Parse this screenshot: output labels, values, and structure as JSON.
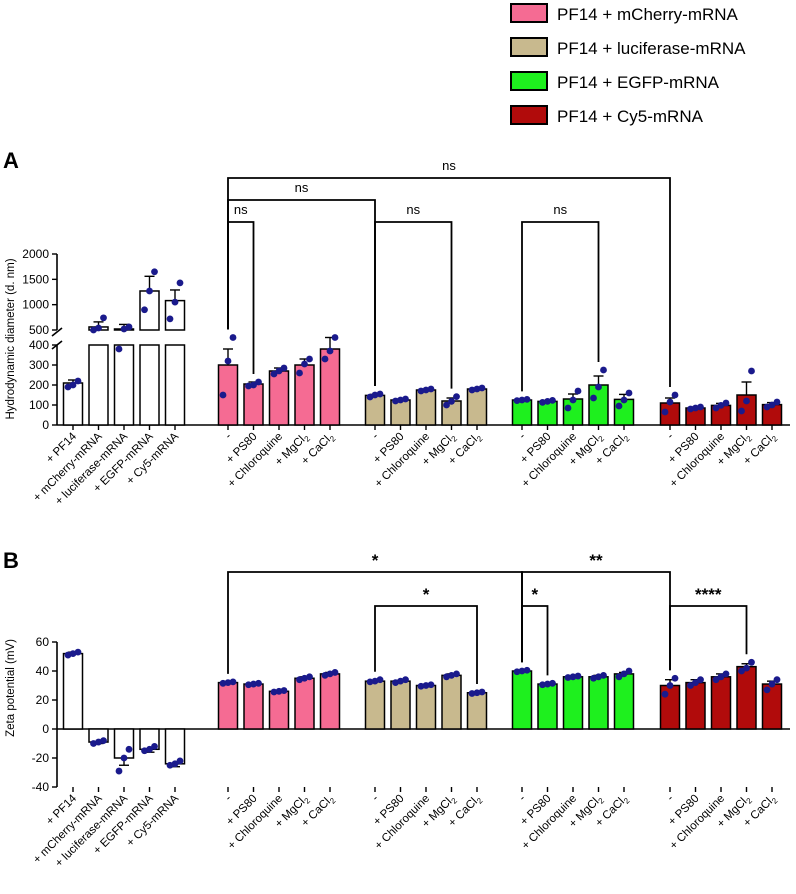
{
  "legend": [
    {
      "label": "PF14 + mCherry-mRNA",
      "color": "#f56b93"
    },
    {
      "label": "PF14 + luciferase-mRNA",
      "color": "#c8b98e"
    },
    {
      "label": "PF14 + EGFP-mRNA",
      "color": "#1ef01e"
    },
    {
      "label": "PF14 + Cy5-mRNA",
      "color": "#b10b0b"
    }
  ],
  "colors": {
    "dot": "#1a1a8c",
    "none": "#ffffff",
    "axis": "#000000"
  },
  "chart_data": [
    {
      "type": "bar",
      "panel": "A",
      "ylabel": "Hydrodynamic diameter (d. nm)",
      "y_lower_ticks": [
        "0",
        "100",
        "200",
        "300",
        "400"
      ],
      "y_upper_ticks": [
        "500",
        "1000",
        "1500",
        "2000"
      ],
      "ylim_lower": [
        0,
        400
      ],
      "ylim_upper": [
        500,
        2000
      ],
      "groups": [
        {
          "color_index": -1,
          "categories": [
            "+ PF14",
            "+ mCherry-mRNA",
            "+ luciferase-mRNA",
            "+ EGFP-mRNA",
            "+ Cy5-mRNA"
          ],
          "values": [
            210,
            560,
            520,
            1270,
            1080
          ],
          "errors": [
            15,
            100,
            90,
            290,
            210
          ],
          "points": [
            [
              190,
              200,
              220
            ],
            [
              500,
              540,
              740
            ],
            [
              380,
              520,
              560
            ],
            [
              900,
              1270,
              1650
            ],
            [
              720,
              1050,
              1430
            ]
          ]
        },
        {
          "color_index": 0,
          "categories": [
            "-",
            "+ PS80",
            "+ Chloroquine",
            "+ MgCl2",
            "+ CaCl2"
          ],
          "values": [
            300,
            205,
            270,
            300,
            380
          ],
          "errors": [
            80,
            10,
            15,
            30,
            40
          ],
          "points": [
            [
              150,
              320,
              470
            ],
            [
              195,
              200,
              215
            ],
            [
              255,
              270,
              285
            ],
            [
              260,
              305,
              330
            ],
            [
              330,
              370,
              450
            ]
          ]
        },
        {
          "color_index": 1,
          "categories": [
            "-",
            "+ PS80",
            "+ Chloroquine",
            "+ MgCl2",
            "+ CaCl2"
          ],
          "values": [
            148,
            125,
            175,
            120,
            180
          ],
          "errors": [
            5,
            5,
            5,
            15,
            5
          ],
          "points": [
            [
              140,
              150,
              155
            ],
            [
              120,
              125,
              130
            ],
            [
              170,
              175,
              180
            ],
            [
              100,
              118,
              142
            ],
            [
              175,
              180,
              185
            ]
          ]
        },
        {
          "color_index": 2,
          "categories": [
            "-",
            "+ PS80",
            "+ Chloroquine",
            "+ MgCl2",
            "+ CaCl2"
          ],
          "values": [
            125,
            118,
            130,
            200,
            128
          ],
          "errors": [
            3,
            5,
            25,
            45,
            25
          ],
          "points": [
            [
              122,
              125,
              128
            ],
            [
              113,
              118,
              123
            ],
            [
              85,
              125,
              170
            ],
            [
              135,
              190,
              275
            ],
            [
              95,
              125,
              160
            ]
          ]
        },
        {
          "color_index": 3,
          "categories": [
            "-",
            "+ PS80",
            "+ Chloroquine",
            "+ MgCl2",
            "+ CaCl2"
          ],
          "values": [
            110,
            85,
            98,
            150,
            102
          ],
          "errors": [
            25,
            5,
            10,
            65,
            10
          ],
          "points": [
            [
              65,
              115,
              150
            ],
            [
              80,
              85,
              90
            ],
            [
              85,
              98,
              110
            ],
            [
              70,
              120,
              270
            ],
            [
              90,
              100,
              115
            ]
          ]
        }
      ],
      "brackets": [
        {
          "from": [
            1,
            0
          ],
          "to": [
            1,
            1
          ],
          "level": 1,
          "label": "ns"
        },
        {
          "from": [
            1,
            0
          ],
          "to": [
            2,
            0
          ],
          "level": 2,
          "label": "ns"
        },
        {
          "from": [
            2,
            0
          ],
          "to": [
            2,
            3
          ],
          "level": 1,
          "label": "ns"
        },
        {
          "from": [
            3,
            0
          ],
          "to": [
            3,
            3
          ],
          "level": 1,
          "label": "ns"
        },
        {
          "from": [
            1,
            0
          ],
          "to": [
            4,
            0
          ],
          "level": 3,
          "label": "ns"
        }
      ]
    },
    {
      "type": "bar",
      "panel": "B",
      "ylabel": "Zeta potential (mV)",
      "y_ticks": [
        "-40",
        "-20",
        "0",
        "20",
        "40",
        "60"
      ],
      "ylim": [
        -40,
        60
      ],
      "groups": [
        {
          "color_index": -1,
          "categories": [
            "+ PF14",
            "+ mCherry-mRNA",
            "+ luciferase-mRNA",
            "+ EGFP-mRNA",
            "+ Cy5-mRNA"
          ],
          "values": [
            52,
            -9,
            -20,
            -14,
            -24
          ],
          "errors": [
            1,
            1,
            5,
            2,
            2
          ],
          "points": [
            [
              51,
              52,
              53
            ],
            [
              -10,
              -9,
              -8
            ],
            [
              -29,
              -20,
              -14
            ],
            [
              -15,
              -14,
              -12
            ],
            [
              -25,
              -24,
              -22
            ]
          ]
        },
        {
          "color_index": 0,
          "categories": [
            "-",
            "+ PS80",
            "+ Chloroquine",
            "+ MgCl2",
            "+ CaCl2"
          ],
          "values": [
            32,
            31,
            26,
            35,
            38
          ],
          "errors": [
            0.5,
            0.5,
            0.5,
            1,
            1
          ],
          "points": [
            [
              31.5,
              32,
              32.5
            ],
            [
              30.5,
              31,
              31.5
            ],
            [
              25.5,
              26,
              26.5
            ],
            [
              34,
              35,
              36
            ],
            [
              37,
              38,
              39
            ]
          ]
        },
        {
          "color_index": 1,
          "categories": [
            "-",
            "+ PS80",
            "+ Chloroquine",
            "+ MgCl2",
            "+ CaCl2"
          ],
          "values": [
            33,
            33,
            30,
            37,
            25
          ],
          "errors": [
            0.5,
            0.5,
            0.5,
            1,
            0.5
          ],
          "points": [
            [
              32.5,
              33,
              34
            ],
            [
              32,
              33,
              34
            ],
            [
              29.5,
              30,
              30.5
            ],
            [
              36,
              37,
              38
            ],
            [
              24.5,
              25,
              25.5
            ]
          ]
        },
        {
          "color_index": 2,
          "categories": [
            "-",
            "+ PS80",
            "+ Chloroquine",
            "+ MgCl2",
            "+ CaCl2"
          ],
          "values": [
            40,
            31,
            36,
            36,
            38
          ],
          "errors": [
            0.5,
            0.5,
            0.5,
            1,
            1
          ],
          "points": [
            [
              39.5,
              40,
              40.5
            ],
            [
              30.5,
              31,
              31.5
            ],
            [
              35.5,
              36,
              36.5
            ],
            [
              35,
              36,
              37
            ],
            [
              36,
              38,
              40
            ]
          ]
        },
        {
          "color_index": 3,
          "categories": [
            "-",
            "+ PS80",
            "+ Chloroquine",
            "+ MgCl2",
            "+ CaCl2"
          ],
          "values": [
            30,
            32,
            36,
            43,
            31
          ],
          "errors": [
            4,
            2,
            2,
            2,
            2
          ],
          "points": [
            [
              24,
              30,
              35
            ],
            [
              30,
              32,
              34
            ],
            [
              34,
              36,
              38
            ],
            [
              40,
              42,
              46
            ],
            [
              27,
              31,
              34
            ]
          ]
        }
      ],
      "brackets": [
        {
          "from": [
            1,
            0
          ],
          "to": [
            3,
            0
          ],
          "level": 3,
          "label": "*"
        },
        {
          "from": [
            2,
            0
          ],
          "to": [
            2,
            4
          ],
          "level": 1,
          "label": "*"
        },
        {
          "from": [
            3,
            0
          ],
          "to": [
            3,
            1
          ],
          "level": 1,
          "label": "*"
        },
        {
          "from": [
            3,
            0
          ],
          "to": [
            4,
            0
          ],
          "level": 3,
          "label": "**"
        },
        {
          "from": [
            4,
            0
          ],
          "to": [
            4,
            3
          ],
          "level": 1,
          "label": "****"
        }
      ]
    }
  ]
}
